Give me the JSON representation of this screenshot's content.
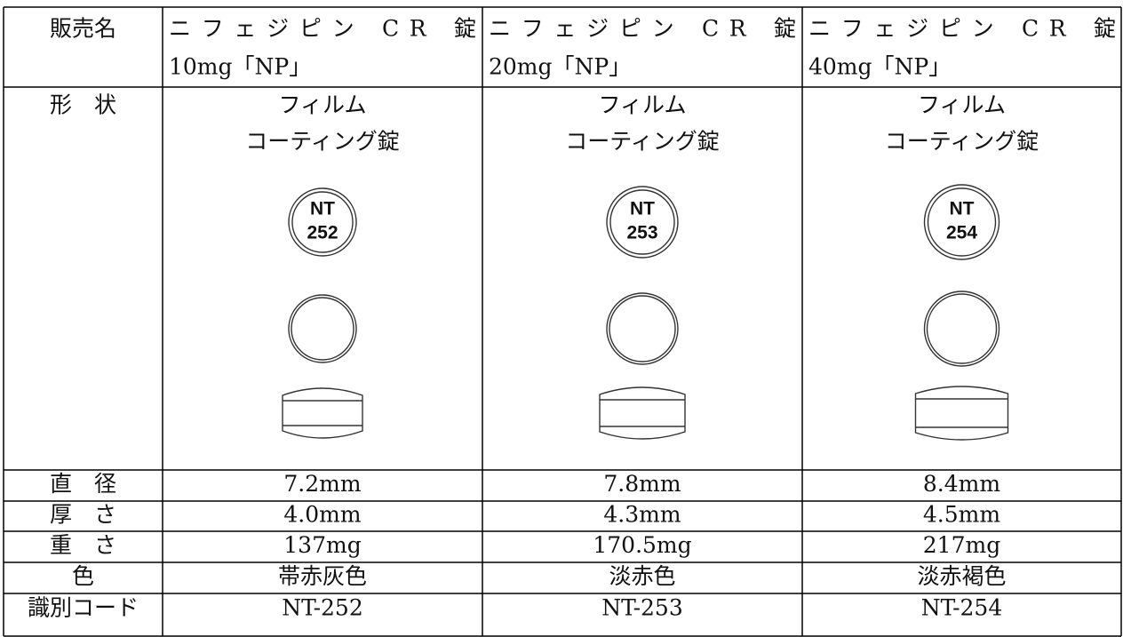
{
  "table": {
    "header": {
      "label": "販売名",
      "products": [
        {
          "line1": "ニフェジピン CR 錠",
          "line2": "10mg「NP」"
        },
        {
          "line1": "ニフェジピン CR 錠",
          "line2": "20mg「NP」"
        },
        {
          "line1": "ニフェジピン CR 錠",
          "line2": "40mg「NP」"
        }
      ]
    },
    "shape": {
      "label": "形　状",
      "products": [
        {
          "form_line1": "フィルム",
          "form_line2": "コーティング錠",
          "imprint_line1": "NT",
          "imprint_line2": "252"
        },
        {
          "form_line1": "フィルム",
          "form_line2": "コーティング錠",
          "imprint_line1": "NT",
          "imprint_line2": "253"
        },
        {
          "form_line1": "フィルム",
          "form_line2": "コーティング錠",
          "imprint_line1": "NT",
          "imprint_line2": "254"
        }
      ]
    },
    "rows": [
      {
        "label": "直　径",
        "values": [
          "7.2mm",
          "7.8mm",
          "8.4mm"
        ]
      },
      {
        "label": "厚　さ",
        "values": [
          "4.0mm",
          "4.3mm",
          "4.5mm"
        ]
      },
      {
        "label": "重　さ",
        "values": [
          "137mg",
          "170.5mg",
          "217mg"
        ]
      },
      {
        "label": "色",
        "values": [
          "帯赤灰色",
          "淡赤色",
          "淡赤褐色"
        ]
      },
      {
        "label": "識別コード",
        "values": [
          "NT-252",
          "NT-253",
          "NT-254"
        ]
      }
    ]
  }
}
